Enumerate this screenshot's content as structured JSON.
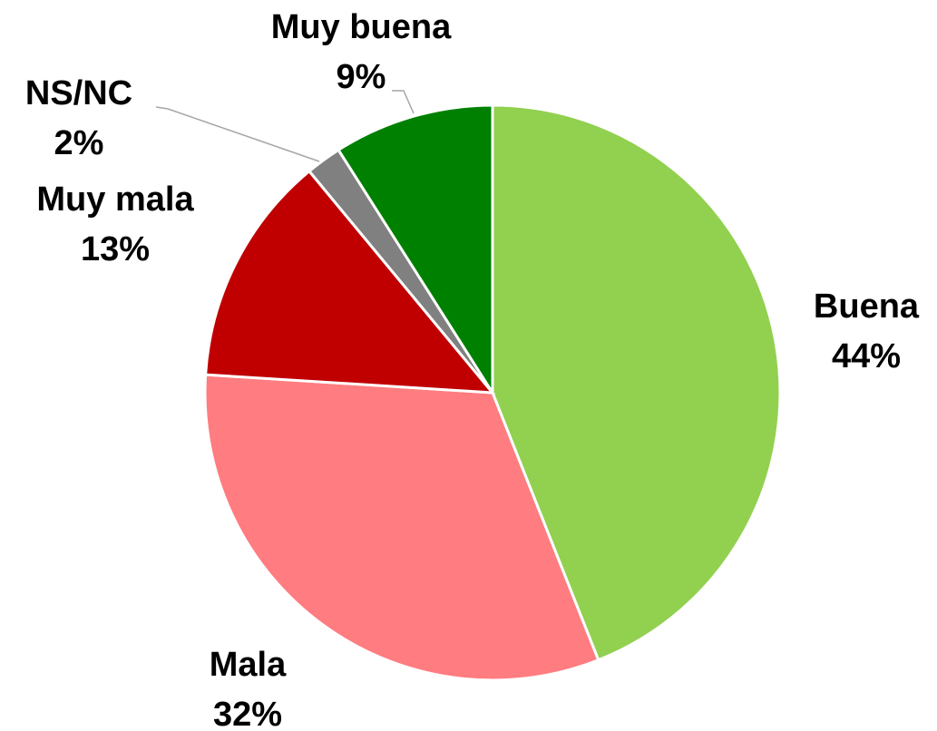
{
  "chart_data": {
    "type": "pie",
    "categories": [
      "Buena",
      "Mala",
      "Muy mala",
      "NS/NC",
      "Muy buena"
    ],
    "values": [
      44,
      32,
      13,
      2,
      9
    ],
    "value_labels": [
      "44%",
      "32%",
      "13%",
      "2%",
      "9%"
    ],
    "colors": [
      "#92d050",
      "#ff7c80",
      "#c00000",
      "#808080",
      "#008000"
    ]
  }
}
